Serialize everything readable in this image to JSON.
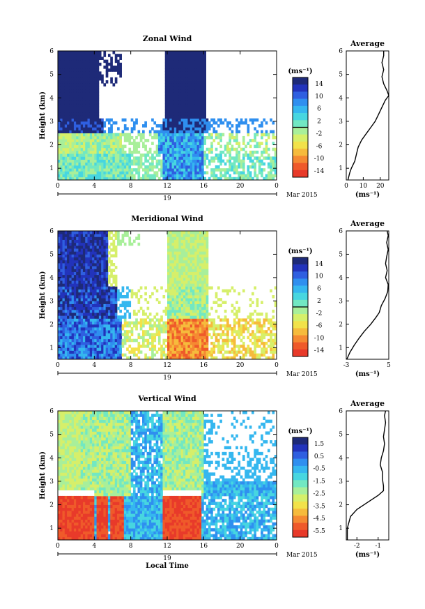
{
  "colormap": [
    "#1e2a78",
    "#2233bb",
    "#2f5fe0",
    "#2f8fef",
    "#35b7ef",
    "#47d6e0",
    "#72e8c2",
    "#a8ef9a",
    "#d6ef6a",
    "#f2e24a",
    "#f6bb3c",
    "#f58a32",
    "#ef5a2a",
    "#e83a2a"
  ],
  "chart_data": [
    {
      "type": "heatmap",
      "title": "Zonal Wind",
      "ylabel": "Height (km)",
      "xlabel": "",
      "x_ticks": [
        "0",
        "4",
        "8",
        "12",
        "16",
        "20",
        "0"
      ],
      "y_ticks": [
        "1",
        "2",
        "3",
        "4",
        "5",
        "6"
      ],
      "xlim": [
        0,
        24
      ],
      "ylim": [
        0.5,
        6
      ],
      "date_label": "19",
      "date_suffix": "Mar 2015",
      "colorbar": {
        "unit": "(ms⁻¹)",
        "ticks": [
          "14",
          "10",
          "6",
          "2",
          "-2",
          "-6",
          "-10",
          "-14"
        ],
        "range": [
          -16,
          16
        ]
      },
      "average": {
        "title": "Average",
        "x_ticks": [
          "0",
          "10",
          "20"
        ],
        "xlim": [
          0,
          25
        ],
        "xlabel": "(ms⁻¹)",
        "profile_height": [
          0.5,
          0.8,
          1.0,
          1.3,
          1.6,
          1.9,
          2.2,
          2.5,
          2.7,
          3.0,
          3.3,
          3.6,
          3.9,
          4.1,
          4.3,
          4.6,
          4.9,
          5.2,
          5.5,
          5.8,
          6.0
        ],
        "profile_value": [
          1,
          2,
          3,
          5,
          6,
          7,
          9,
          12,
          14,
          17,
          19,
          21,
          23,
          25,
          24,
          22,
          21,
          22,
          21,
          22,
          22
        ]
      }
    },
    {
      "type": "heatmap",
      "title": "Meridional Wind",
      "ylabel": "Height (km)",
      "xlabel": "",
      "x_ticks": [
        "0",
        "4",
        "8",
        "12",
        "16",
        "20",
        "0"
      ],
      "y_ticks": [
        "1",
        "2",
        "3",
        "4",
        "5",
        "6"
      ],
      "xlim": [
        0,
        24
      ],
      "ylim": [
        0.5,
        6
      ],
      "date_label": "19",
      "date_suffix": "Mar 2015",
      "colorbar": {
        "unit": "(ms⁻¹)",
        "ticks": [
          "14",
          "10",
          "6",
          "2",
          "-2",
          "-6",
          "-10",
          "-14"
        ],
        "range": [
          -16,
          16
        ]
      },
      "average": {
        "title": "Average",
        "x_ticks": [
          "-3",
          "5"
        ],
        "xlim": [
          -3,
          5
        ],
        "xlabel": "(ms⁻¹)",
        "profile_height": [
          0.5,
          0.8,
          1.1,
          1.4,
          1.7,
          2.0,
          2.3,
          2.5,
          2.8,
          3.1,
          3.4,
          3.7,
          4.0,
          4.3,
          4.6,
          4.9,
          5.2,
          5.5,
          5.8,
          6.0
        ],
        "profile_value": [
          -2.9,
          -2.3,
          -1.5,
          -0.6,
          0.4,
          1.6,
          2.6,
          3.2,
          3.6,
          4.3,
          4.8,
          4.9,
          4.4,
          4.7,
          4.4,
          4.6,
          4.9,
          4.6,
          4.9,
          4.7
        ]
      }
    },
    {
      "type": "heatmap",
      "title": "Vertical Wind",
      "ylabel": "Height (km)",
      "xlabel": "Local Time",
      "x_ticks": [
        "0",
        "4",
        "8",
        "12",
        "16",
        "20",
        "0"
      ],
      "y_ticks": [
        "1",
        "2",
        "3",
        "4",
        "5",
        "6"
      ],
      "xlim": [
        0,
        24
      ],
      "ylim": [
        0.5,
        6
      ],
      "date_label": "19",
      "date_suffix": "Mar 2015",
      "colorbar": {
        "unit": "(ms⁻¹)",
        "ticks": [
          "1.5",
          "0.5",
          "-0.5",
          "-1.5",
          "-2.5",
          "-3.5",
          "-4.5",
          "-5.5"
        ],
        "range": [
          -6,
          2
        ]
      },
      "average": {
        "title": "Average",
        "x_ticks": [
          "-2",
          "-1"
        ],
        "xlim": [
          -2.5,
          -0.5
        ],
        "xlabel": "(ms⁻¹)",
        "profile_height": [
          0.5,
          1.0,
          1.5,
          1.8,
          2.1,
          2.4,
          2.6,
          2.8,
          3.1,
          3.4,
          3.7,
          4.0,
          4.3,
          4.6,
          4.9,
          5.2,
          5.5,
          5.8,
          6.0
        ],
        "profile_value": [
          -2.45,
          -2.45,
          -2.3,
          -2.0,
          -1.5,
          -1.0,
          -0.75,
          -0.75,
          -0.8,
          -0.8,
          -0.9,
          -0.85,
          -0.75,
          -0.7,
          -0.75,
          -0.7,
          -0.65,
          -0.7,
          -0.65
        ]
      }
    }
  ]
}
